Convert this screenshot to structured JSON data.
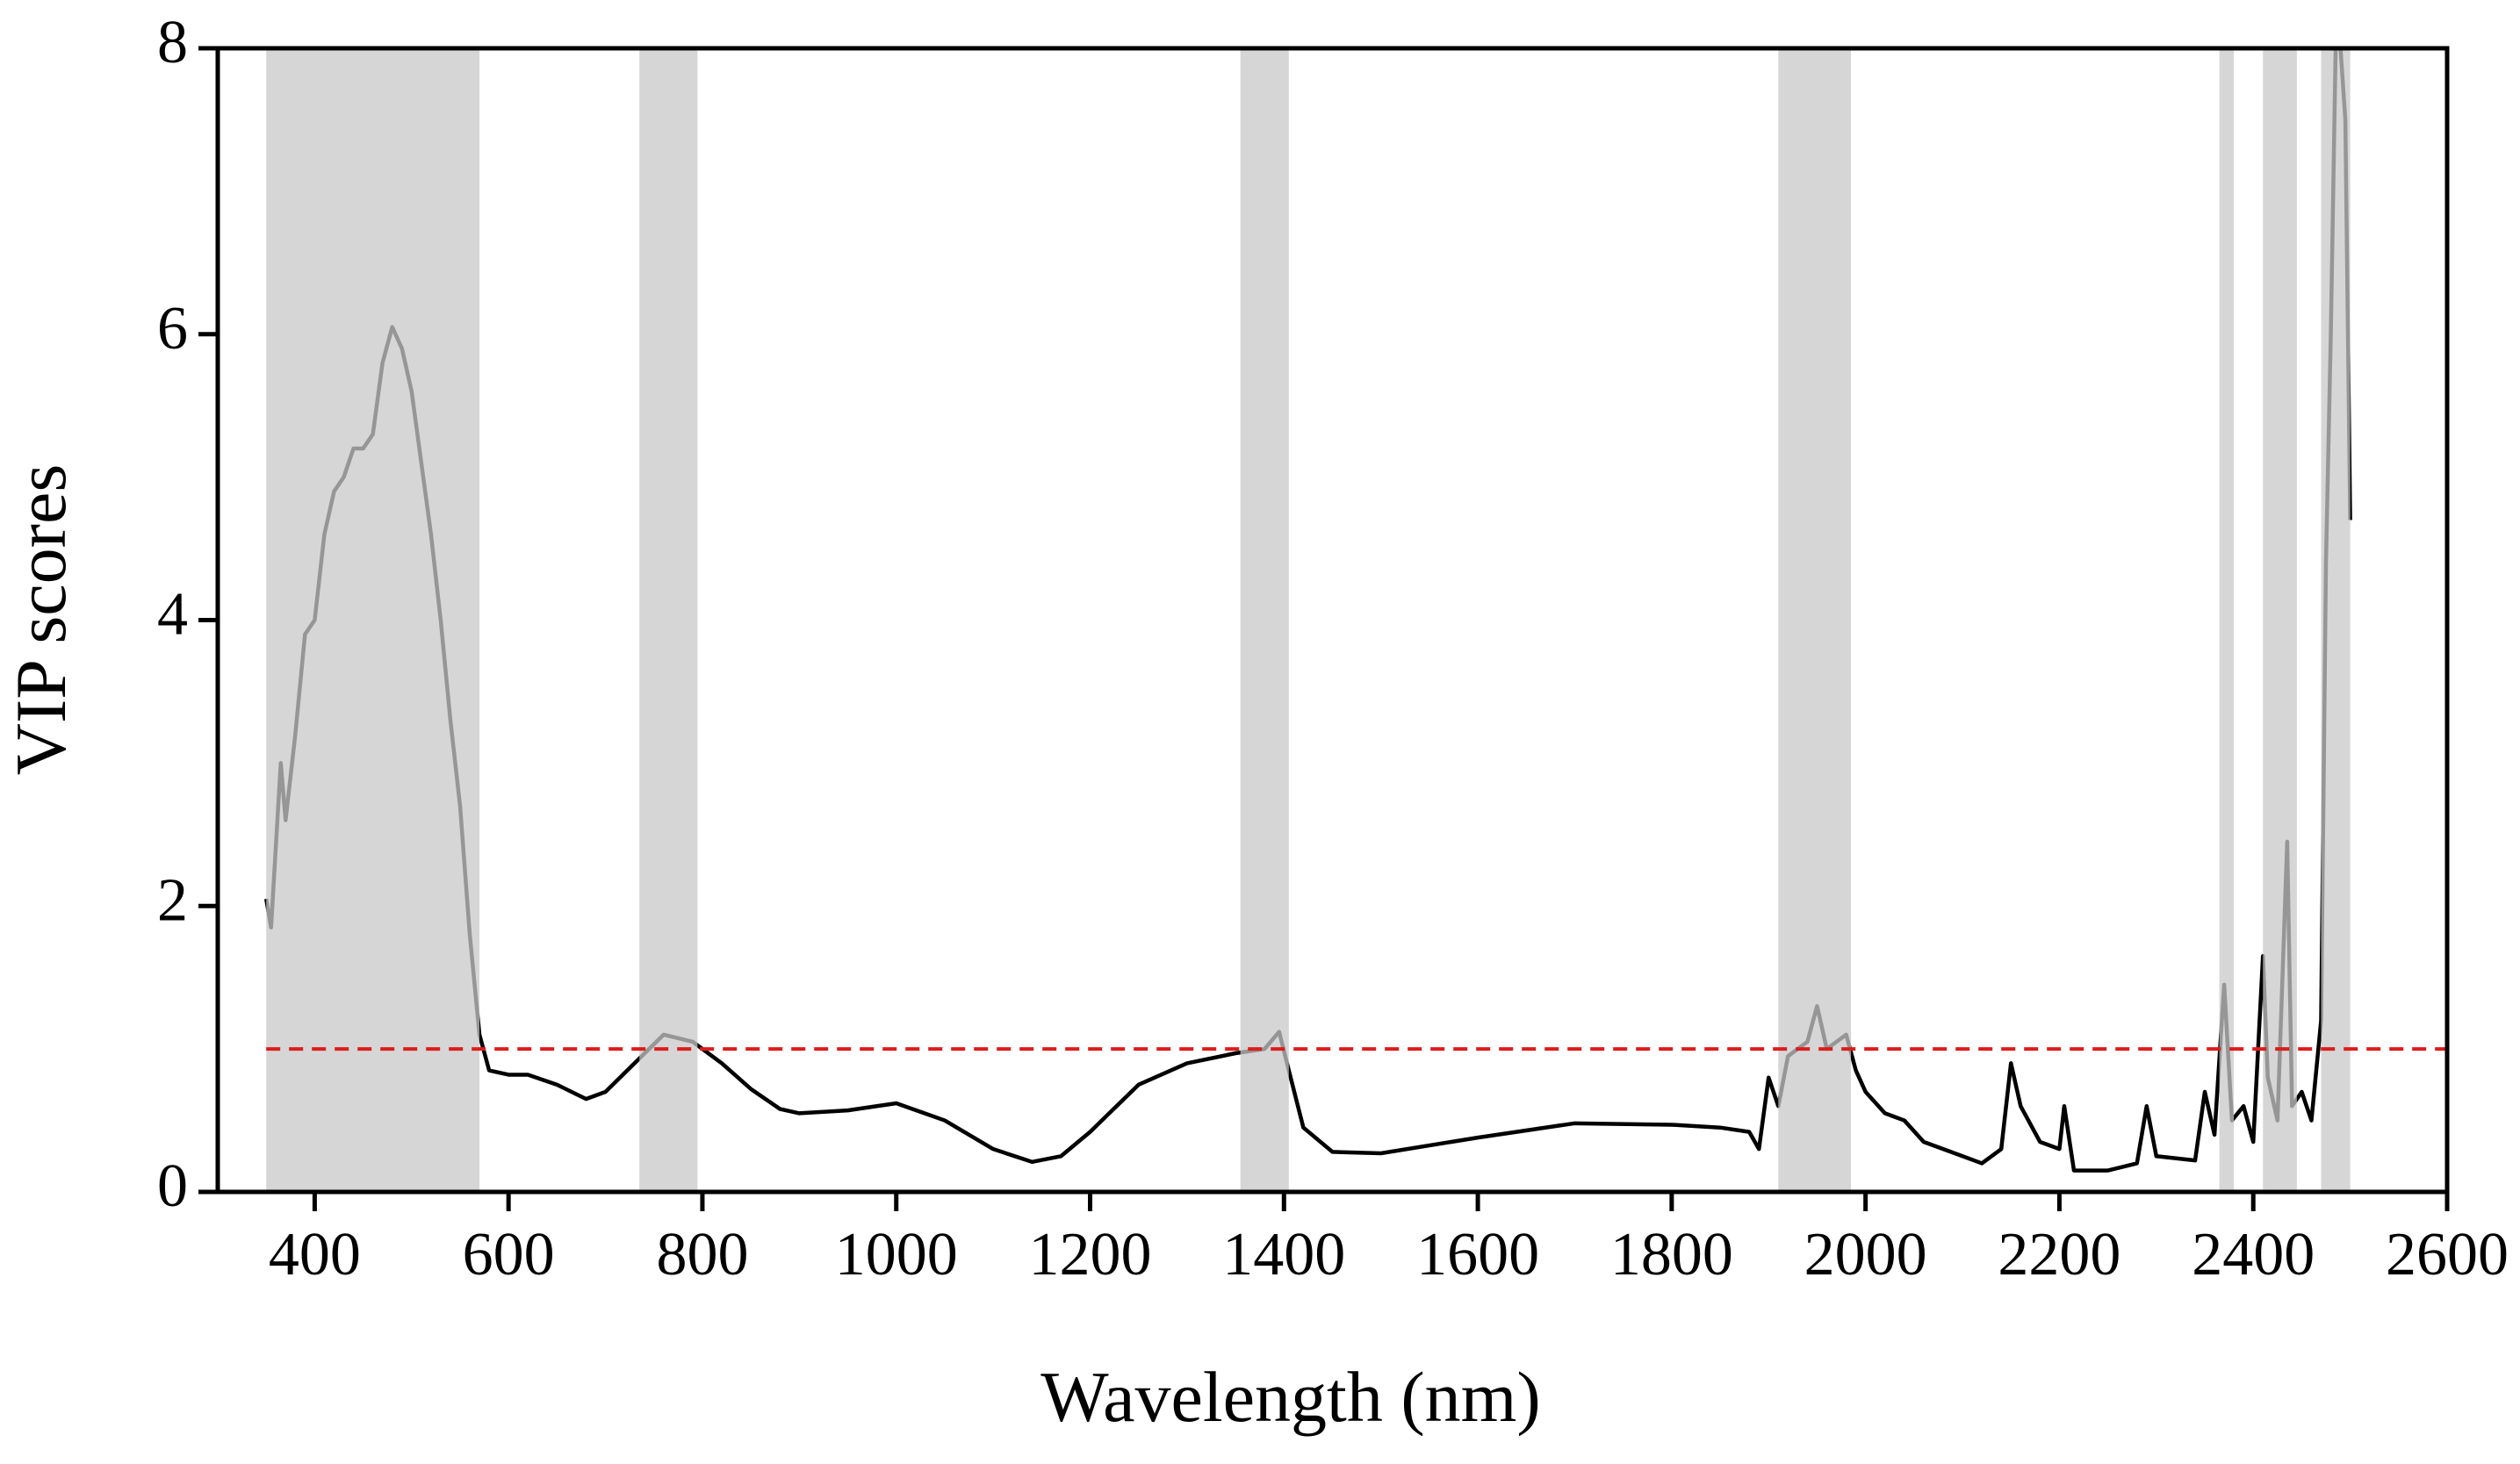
{
  "chart_data": {
    "type": "line",
    "xlabel": "Wavelength (nm)",
    "ylabel": "VIP scores",
    "xlim": [
      300,
      2600
    ],
    "xticks": [
      400,
      600,
      800,
      1000,
      1200,
      1400,
      1600,
      1800,
      2000,
      2200,
      2400,
      2600
    ],
    "ylim": [
      0,
      8
    ],
    "yticks": [
      0,
      2,
      4,
      6,
      8
    ],
    "threshold": 1,
    "threshold_color": "#dd1c1c",
    "shaded_ranges": [
      [
        350,
        570
      ],
      [
        735,
        795
      ],
      [
        1355,
        1405
      ],
      [
        1910,
        1985
      ],
      [
        2365,
        2380
      ],
      [
        2410,
        2445
      ],
      [
        2470,
        2500
      ]
    ],
    "shade_color": "#c8c8c8",
    "x": [
      350,
      355,
      365,
      370,
      380,
      390,
      400,
      410,
      420,
      430,
      440,
      450,
      460,
      470,
      480,
      490,
      500,
      510,
      520,
      530,
      540,
      550,
      560,
      570,
      580,
      600,
      620,
      650,
      680,
      700,
      730,
      760,
      790,
      820,
      850,
      880,
      900,
      950,
      980,
      1000,
      1050,
      1100,
      1140,
      1170,
      1200,
      1250,
      1300,
      1350,
      1380,
      1395,
      1405,
      1420,
      1450,
      1500,
      1600,
      1700,
      1800,
      1850,
      1880,
      1890,
      1900,
      1910,
      1920,
      1940,
      1950,
      1960,
      1980,
      1990,
      2000,
      2020,
      2040,
      2060,
      2080,
      2100,
      2120,
      2140,
      2150,
      2160,
      2180,
      2200,
      2205,
      2215,
      2250,
      2280,
      2290,
      2300,
      2340,
      2350,
      2360,
      2370,
      2378,
      2390,
      2400,
      2410,
      2415,
      2425,
      2435,
      2440,
      2450,
      2460,
      2470,
      2475,
      2480,
      2485,
      2490,
      2495,
      2500
    ],
    "series": [
      {
        "color": "#000000",
        "values": [
          2.05,
          1.85,
          3.0,
          2.6,
          3.2,
          3.9,
          4.0,
          4.6,
          4.9,
          5.0,
          5.2,
          5.2,
          5.3,
          5.8,
          6.05,
          5.9,
          5.6,
          5.1,
          4.6,
          4.0,
          3.3,
          2.7,
          1.8,
          1.1,
          0.85,
          0.82,
          0.82,
          0.75,
          0.65,
          0.7,
          0.9,
          1.1,
          1.05,
          0.9,
          0.72,
          0.58,
          0.55,
          0.57,
          0.6,
          0.62,
          0.5,
          0.3,
          0.21,
          0.25,
          0.42,
          0.75,
          0.9,
          0.97,
          1.0,
          1.12,
          0.85,
          0.45,
          0.28,
          0.27,
          0.38,
          0.48,
          0.47,
          0.45,
          0.42,
          0.3,
          0.8,
          0.6,
          0.95,
          1.05,
          1.3,
          1.0,
          1.1,
          0.85,
          0.7,
          0.55,
          0.5,
          0.35,
          0.3,
          0.25,
          0.2,
          0.3,
          0.9,
          0.6,
          0.35,
          0.3,
          0.6,
          0.15,
          0.15,
          0.2,
          0.6,
          0.25,
          0.22,
          0.7,
          0.4,
          1.45,
          0.5,
          0.6,
          0.35,
          1.65,
          0.8,
          0.5,
          2.45,
          0.6,
          0.7,
          0.5,
          1.2,
          4.4,
          6.0,
          8.0,
          8.0,
          7.5,
          4.7
        ]
      }
    ]
  }
}
